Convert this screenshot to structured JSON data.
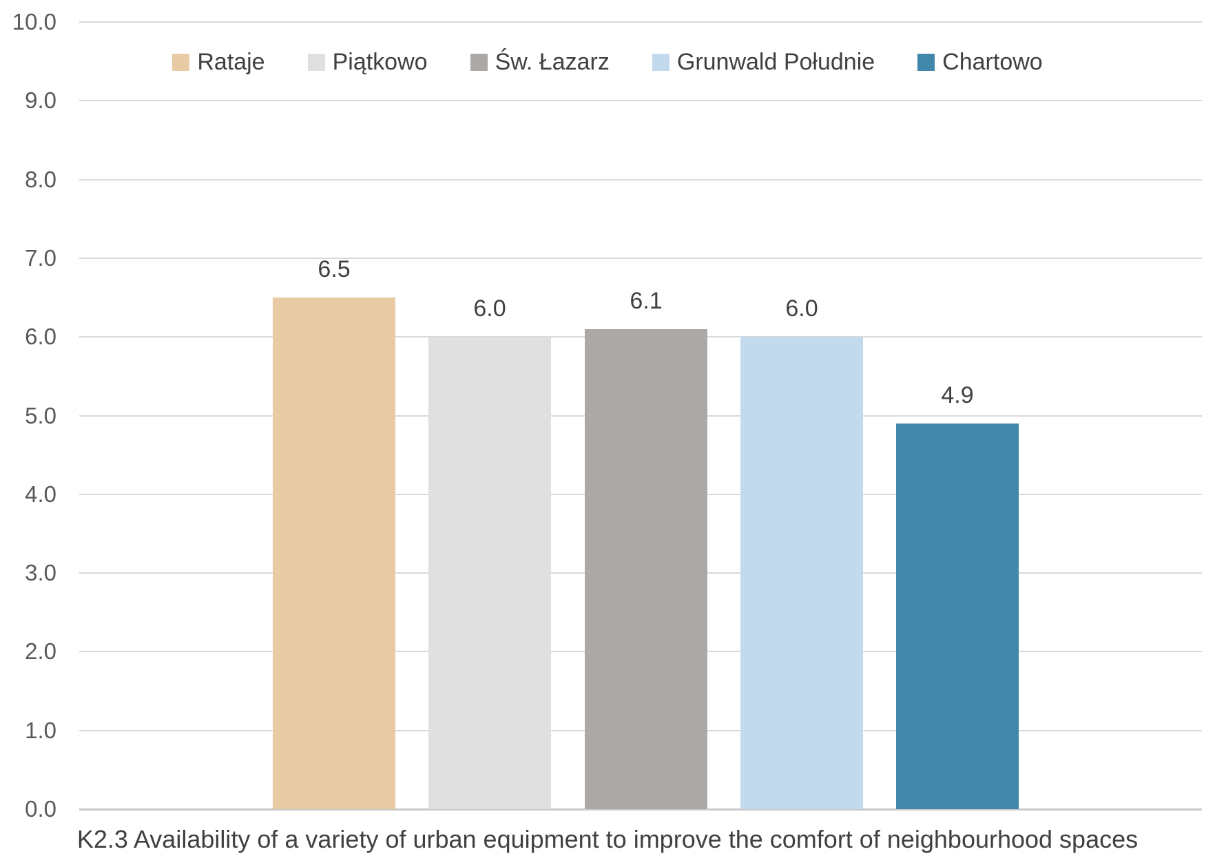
{
  "chart_data": {
    "type": "bar",
    "title": "K2.3 Availability of a variety of urban equipment to improve the comfort of neighbourhood spaces",
    "categories": [
      "Rataje",
      "Piątkowo",
      "Św. Łazarz",
      "Grunwald Południe",
      "Chartowo"
    ],
    "values": [
      6.5,
      6.0,
      6.1,
      6.0,
      4.9
    ],
    "value_labels": [
      "6.5",
      "6.0",
      "6.1",
      "6.0",
      "4.9"
    ],
    "bar_colors": [
      "#e8caa4",
      "#e0e0e0",
      "#aba8a5",
      "#c3d9ee",
      "#4187a9"
    ],
    "xlabel": "",
    "ylabel": "",
    "ylim": [
      0,
      10
    ],
    "ytick_step": 1.0,
    "ytick_labels": [
      "0.0",
      "1.0",
      "2.0",
      "3.0",
      "4.0",
      "5.0",
      "6.0",
      "7.0",
      "8.0",
      "9.0",
      "10.0"
    ],
    "grid": true,
    "legend_position": "top"
  },
  "colors": {
    "background": "#ffffff",
    "gridline": "#d9d9d9",
    "axis_line": "#c9c9c9",
    "tick_label": "#595959",
    "value_label": "#404040",
    "legend_text": "#404040",
    "title_text": "#404040"
  }
}
